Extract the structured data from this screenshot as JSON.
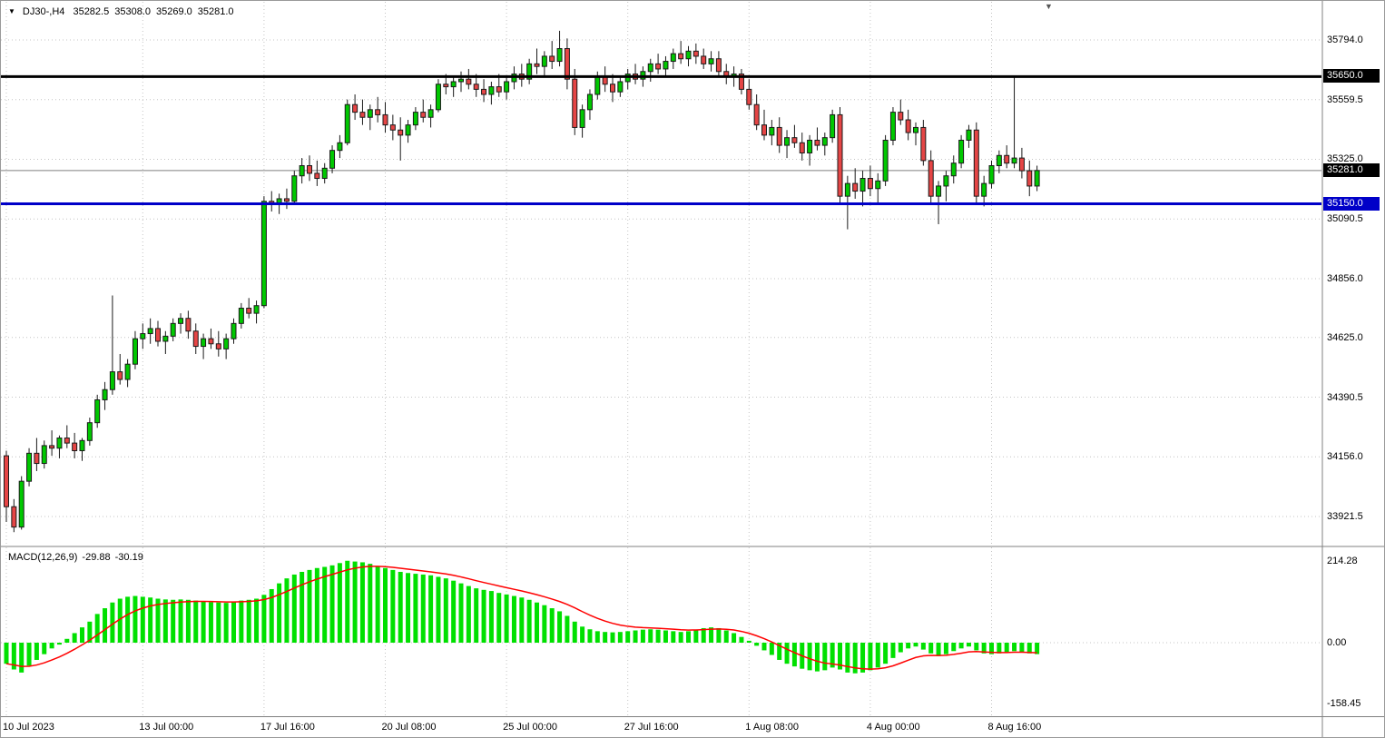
{
  "header": {
    "symbol": "DJ30-,H4",
    "open": "35282.5",
    "high": "35308.0",
    "low": "35269.0",
    "close": "35281.0"
  },
  "indicator": {
    "name": "MACD(12,26,9)",
    "macd_value": "-29.88",
    "signal_value": "-30.19"
  },
  "colors": {
    "background": "#ffffff",
    "grid": "#c4c4c4",
    "candle_up": "#00c800",
    "candle_down": "#e54545",
    "candle_outline": "#1a1a1a",
    "hist": "#00e000",
    "signal": "#ff0000",
    "resistance_line": "#000000",
    "support_line": "#0000c8",
    "bid_line": "#808080",
    "bid_tag_bg": "#000000",
    "axis_text": "#000000",
    "separator": "#808080"
  },
  "price_axis": {
    "tick_labels": [
      "35794.0",
      "35559.5",
      "35325.0",
      "35090.5",
      "34856.0",
      "34625.0",
      "34390.5",
      "34156.0",
      "33921.5"
    ]
  },
  "macd_axis": {
    "tick_labels": [
      "214.28",
      "0.00",
      "-158.45"
    ]
  },
  "time_axis": {
    "labels": [
      "10 Jul 2023",
      "13 Jul 00:00",
      "17 Jul 16:00",
      "20 Jul 08:00",
      "25 Jul 00:00",
      "27 Jul 16:00",
      "1 Aug 08:00",
      "4 Aug 00:00",
      "8 Aug 16:00"
    ]
  },
  "chart_data": [
    {
      "type": "candlestick",
      "symbol": "DJ30-",
      "timeframe": "H4",
      "ohlc_current": {
        "open": 35282.5,
        "high": 35308.0,
        "low": 35269.0,
        "close": 35281.0
      },
      "y_ticks": [
        35794.0,
        35559.5,
        35325.0,
        35090.5,
        34856.0,
        34625.0,
        34390.5,
        34156.0,
        33921.5
      ],
      "x_ticks": [
        {
          "index": 0,
          "label": "10 Jul 2023"
        },
        {
          "index": 18,
          "label": "13 Jul 00:00"
        },
        {
          "index": 34,
          "label": "17 Jul 16:00"
        },
        {
          "index": 50,
          "label": "20 Jul 08:00"
        },
        {
          "index": 66,
          "label": "25 Jul 00:00"
        },
        {
          "index": 82,
          "label": "27 Jul 16:00"
        },
        {
          "index": 98,
          "label": "1 Aug 08:00"
        },
        {
          "index": 114,
          "label": "4 Aug 00:00"
        },
        {
          "index": 130,
          "label": "8 Aug 16:00"
        }
      ],
      "hlines": [
        {
          "price": 35650.0,
          "label": "35650.0",
          "color": "#000000"
        },
        {
          "price": 35150.0,
          "label": "35150.0",
          "color": "#0000c8"
        }
      ],
      "bid": {
        "price": 35281.0,
        "label": "35281.0"
      },
      "candles": [
        [
          34160,
          34180,
          33900,
          33960
        ],
        [
          33960,
          33990,
          33860,
          33880
        ],
        [
          33880,
          34080,
          33870,
          34060
        ],
        [
          34060,
          34190,
          34040,
          34170
        ],
        [
          34170,
          34230,
          34100,
          34130
        ],
        [
          34130,
          34220,
          34110,
          34200
        ],
        [
          34200,
          34260,
          34160,
          34190
        ],
        [
          34190,
          34240,
          34150,
          34230
        ],
        [
          34230,
          34280,
          34190,
          34210
        ],
        [
          34210,
          34250,
          34150,
          34180
        ],
        [
          34180,
          34230,
          34140,
          34220
        ],
        [
          34220,
          34310,
          34200,
          34290
        ],
        [
          34290,
          34400,
          34270,
          34380
        ],
        [
          34380,
          34450,
          34340,
          34420
        ],
        [
          34420,
          34790,
          34400,
          34490
        ],
        [
          34490,
          34560,
          34440,
          34460
        ],
        [
          34460,
          34540,
          34430,
          34520
        ],
        [
          34520,
          34650,
          34500,
          34620
        ],
        [
          34620,
          34680,
          34580,
          34640
        ],
        [
          34640,
          34700,
          34600,
          34660
        ],
        [
          34660,
          34690,
          34590,
          34610
        ],
        [
          34610,
          34650,
          34560,
          34630
        ],
        [
          34630,
          34700,
          34610,
          34680
        ],
        [
          34680,
          34720,
          34640,
          34700
        ],
        [
          34700,
          34730,
          34620,
          34650
        ],
        [
          34650,
          34680,
          34560,
          34590
        ],
        [
          34590,
          34640,
          34540,
          34620
        ],
        [
          34620,
          34660,
          34580,
          34600
        ],
        [
          34600,
          34650,
          34550,
          34580
        ],
        [
          34580,
          34640,
          34540,
          34620
        ],
        [
          34620,
          34700,
          34600,
          34680
        ],
        [
          34680,
          34760,
          34660,
          34740
        ],
        [
          34740,
          34780,
          34700,
          34720
        ],
        [
          34720,
          34770,
          34680,
          34750
        ],
        [
          34750,
          35180,
          34740,
          35160
        ],
        [
          35160,
          35200,
          35120,
          35150
        ],
        [
          35150,
          35190,
          35110,
          35170
        ],
        [
          35170,
          35210,
          35130,
          35160
        ],
        [
          35160,
          35280,
          35150,
          35260
        ],
        [
          35260,
          35330,
          35230,
          35300
        ],
        [
          35300,
          35340,
          35240,
          35270
        ],
        [
          35270,
          35320,
          35220,
          35250
        ],
        [
          35250,
          35310,
          35230,
          35290
        ],
        [
          35290,
          35380,
          35270,
          35360
        ],
        [
          35360,
          35420,
          35330,
          35390
        ],
        [
          35390,
          35560,
          35380,
          35540
        ],
        [
          35540,
          35580,
          35480,
          35510
        ],
        [
          35510,
          35560,
          35460,
          35490
        ],
        [
          35490,
          35540,
          35440,
          35520
        ],
        [
          35520,
          35570,
          35470,
          35500
        ],
        [
          35500,
          35550,
          35430,
          35460
        ],
        [
          35460,
          35500,
          35400,
          35440
        ],
        [
          35440,
          35490,
          35320,
          35420
        ],
        [
          35420,
          35480,
          35390,
          35460
        ],
        [
          35460,
          35530,
          35440,
          35510
        ],
        [
          35510,
          35560,
          35470,
          35490
        ],
        [
          35490,
          35540,
          35450,
          35520
        ],
        [
          35520,
          35640,
          35510,
          35620
        ],
        [
          35620,
          35660,
          35580,
          35610
        ],
        [
          35610,
          35650,
          35570,
          35630
        ],
        [
          35630,
          35670,
          35590,
          35640
        ],
        [
          35640,
          35680,
          35600,
          35620
        ],
        [
          35620,
          35660,
          35570,
          35600
        ],
        [
          35600,
          35640,
          35550,
          35580
        ],
        [
          35580,
          35630,
          35540,
          35610
        ],
        [
          35610,
          35660,
          35570,
          35590
        ],
        [
          35590,
          35650,
          35560,
          35630
        ],
        [
          35630,
          35690,
          35600,
          35660
        ],
        [
          35660,
          35700,
          35610,
          35640
        ],
        [
          35640,
          35720,
          35620,
          35700
        ],
        [
          35700,
          35760,
          35660,
          35690
        ],
        [
          35690,
          35750,
          35650,
          35730
        ],
        [
          35730,
          35790,
          35680,
          35710
        ],
        [
          35710,
          35830,
          35690,
          35760
        ],
        [
          35760,
          35800,
          35600,
          35640
        ],
        [
          35640,
          35680,
          35420,
          35450
        ],
        [
          35450,
          35540,
          35410,
          35520
        ],
        [
          35520,
          35600,
          35480,
          35580
        ],
        [
          35580,
          35670,
          35560,
          35650
        ],
        [
          35650,
          35690,
          35590,
          35620
        ],
        [
          35620,
          35660,
          35550,
          35590
        ],
        [
          35590,
          35650,
          35570,
          35630
        ],
        [
          35630,
          35680,
          35600,
          35660
        ],
        [
          35660,
          35700,
          35620,
          35640
        ],
        [
          35640,
          35690,
          35610,
          35670
        ],
        [
          35670,
          35720,
          35630,
          35700
        ],
        [
          35700,
          35740,
          35660,
          35680
        ],
        [
          35680,
          35730,
          35650,
          35710
        ],
        [
          35710,
          35760,
          35680,
          35740
        ],
        [
          35740,
          35790,
          35700,
          35720
        ],
        [
          35720,
          35770,
          35690,
          35750
        ],
        [
          35750,
          35780,
          35700,
          35730
        ],
        [
          35730,
          35760,
          35680,
          35700
        ],
        [
          35700,
          35750,
          35670,
          35720
        ],
        [
          35720,
          35750,
          35650,
          35670
        ],
        [
          35670,
          35700,
          35620,
          35650
        ],
        [
          35650,
          35690,
          35610,
          35660
        ],
        [
          35660,
          35680,
          35580,
          35600
        ],
        [
          35600,
          35640,
          35520,
          35540
        ],
        [
          35540,
          35580,
          35440,
          35460
        ],
        [
          35460,
          35520,
          35400,
          35420
        ],
        [
          35420,
          35480,
          35380,
          35450
        ],
        [
          35450,
          35490,
          35350,
          35380
        ],
        [
          35380,
          35440,
          35330,
          35410
        ],
        [
          35410,
          35460,
          35370,
          35390
        ],
        [
          35390,
          35430,
          35320,
          35350
        ],
        [
          35350,
          35420,
          35300,
          35400
        ],
        [
          35400,
          35450,
          35360,
          35380
        ],
        [
          35380,
          35430,
          35340,
          35410
        ],
        [
          35410,
          35520,
          35390,
          35500
        ],
        [
          35500,
          35530,
          35150,
          35180
        ],
        [
          35180,
          35260,
          35050,
          35230
        ],
        [
          35230,
          35290,
          35170,
          35200
        ],
        [
          35200,
          35280,
          35140,
          35250
        ],
        [
          35250,
          35300,
          35180,
          35210
        ],
        [
          35210,
          35270,
          35150,
          35240
        ],
        [
          35240,
          35420,
          35220,
          35400
        ],
        [
          35400,
          35530,
          35380,
          35510
        ],
        [
          35510,
          35560,
          35460,
          35480
        ],
        [
          35480,
          35520,
          35400,
          35430
        ],
        [
          35430,
          35470,
          35380,
          35450
        ],
        [
          35450,
          35480,
          35300,
          35320
        ],
        [
          35320,
          35360,
          35150,
          35180
        ],
        [
          35180,
          35240,
          35070,
          35220
        ],
        [
          35220,
          35280,
          35160,
          35260
        ],
        [
          35260,
          35340,
          35230,
          35310
        ],
        [
          35310,
          35420,
          35290,
          35400
        ],
        [
          35400,
          35460,
          35370,
          35440
        ],
        [
          35440,
          35470,
          35150,
          35180
        ],
        [
          35180,
          35260,
          35140,
          35230
        ],
        [
          35230,
          35320,
          35210,
          35300
        ],
        [
          35300,
          35360,
          35270,
          35340
        ],
        [
          35340,
          35380,
          35290,
          35310
        ],
        [
          35310,
          35650,
          35290,
          35330
        ],
        [
          35330,
          35370,
          35250,
          35280
        ],
        [
          35280,
          35320,
          35180,
          35220
        ],
        [
          35220,
          35300,
          35200,
          35281
        ]
      ]
    },
    {
      "type": "bar",
      "name": "MACD(12,26,9)",
      "current_values": [
        -29.88,
        -30.19
      ],
      "y_ticks": [
        214.28,
        0.0,
        -158.45
      ],
      "legend": "green histogram = MACD main, red line = signal (EMA9)",
      "histogram": [
        -55,
        -70,
        -78,
        -60,
        -45,
        -30,
        -15,
        -5,
        10,
        25,
        40,
        55,
        75,
        90,
        105,
        115,
        120,
        122,
        120,
        118,
        115,
        113,
        112,
        113,
        112,
        110,
        108,
        106,
        105,
        104,
        106,
        110,
        112,
        115,
        125,
        140,
        155,
        168,
        178,
        185,
        190,
        195,
        198,
        202,
        208,
        214,
        212,
        210,
        206,
        200,
        195,
        190,
        185,
        182,
        180,
        178,
        176,
        172,
        168,
        162,
        155,
        148,
        142,
        138,
        135,
        130,
        126,
        122,
        118,
        112,
        105,
        98,
        90,
        82,
        70,
        55,
        42,
        35,
        30,
        28,
        27,
        28,
        30,
        32,
        34,
        35,
        34,
        32,
        30,
        28,
        30,
        34,
        38,
        40,
        38,
        32,
        25,
        15,
        5,
        -8,
        -20,
        -32,
        -45,
        -55,
        -62,
        -68,
        -72,
        -75,
        -72,
        -65,
        -70,
        -78,
        -80,
        -78,
        -72,
        -65,
        -55,
        -40,
        -25,
        -15,
        -10,
        -18,
        -28,
        -35,
        -30,
        -22,
        -15,
        -10,
        -20,
        -28,
        -30,
        -28,
        -25,
        -22,
        -24,
        -28,
        -29.88
      ]
    }
  ]
}
